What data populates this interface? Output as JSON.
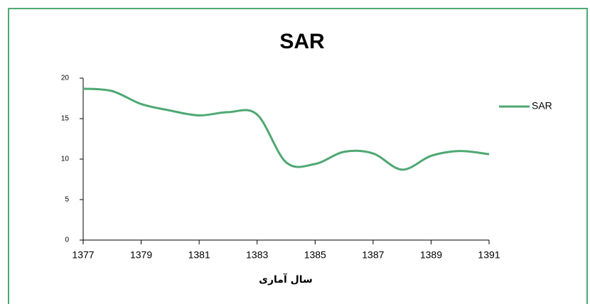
{
  "chart_data": {
    "type": "line",
    "title": "SAR",
    "xlabel": "سال آماری",
    "x": [
      1377,
      1378,
      1379,
      1380,
      1381,
      1382,
      1383,
      1384,
      1385,
      1386,
      1387,
      1388,
      1389,
      1390,
      1391
    ],
    "series": [
      {
        "name": "SAR",
        "color": "#4ea872",
        "values": [
          18.7,
          18.4,
          16.8,
          16.0,
          15.4,
          15.8,
          15.5,
          9.6,
          9.4,
          10.9,
          10.7,
          8.7,
          10.4,
          11.0,
          10.6
        ]
      }
    ],
    "xlim": [
      1377,
      1391
    ],
    "xticks": [
      1377,
      1379,
      1381,
      1383,
      1385,
      1387,
      1389,
      1391
    ],
    "ylim": [
      0,
      20
    ],
    "yticks": [
      0,
      5,
      10,
      15,
      20
    ],
    "smooth": true,
    "legend": "right"
  }
}
